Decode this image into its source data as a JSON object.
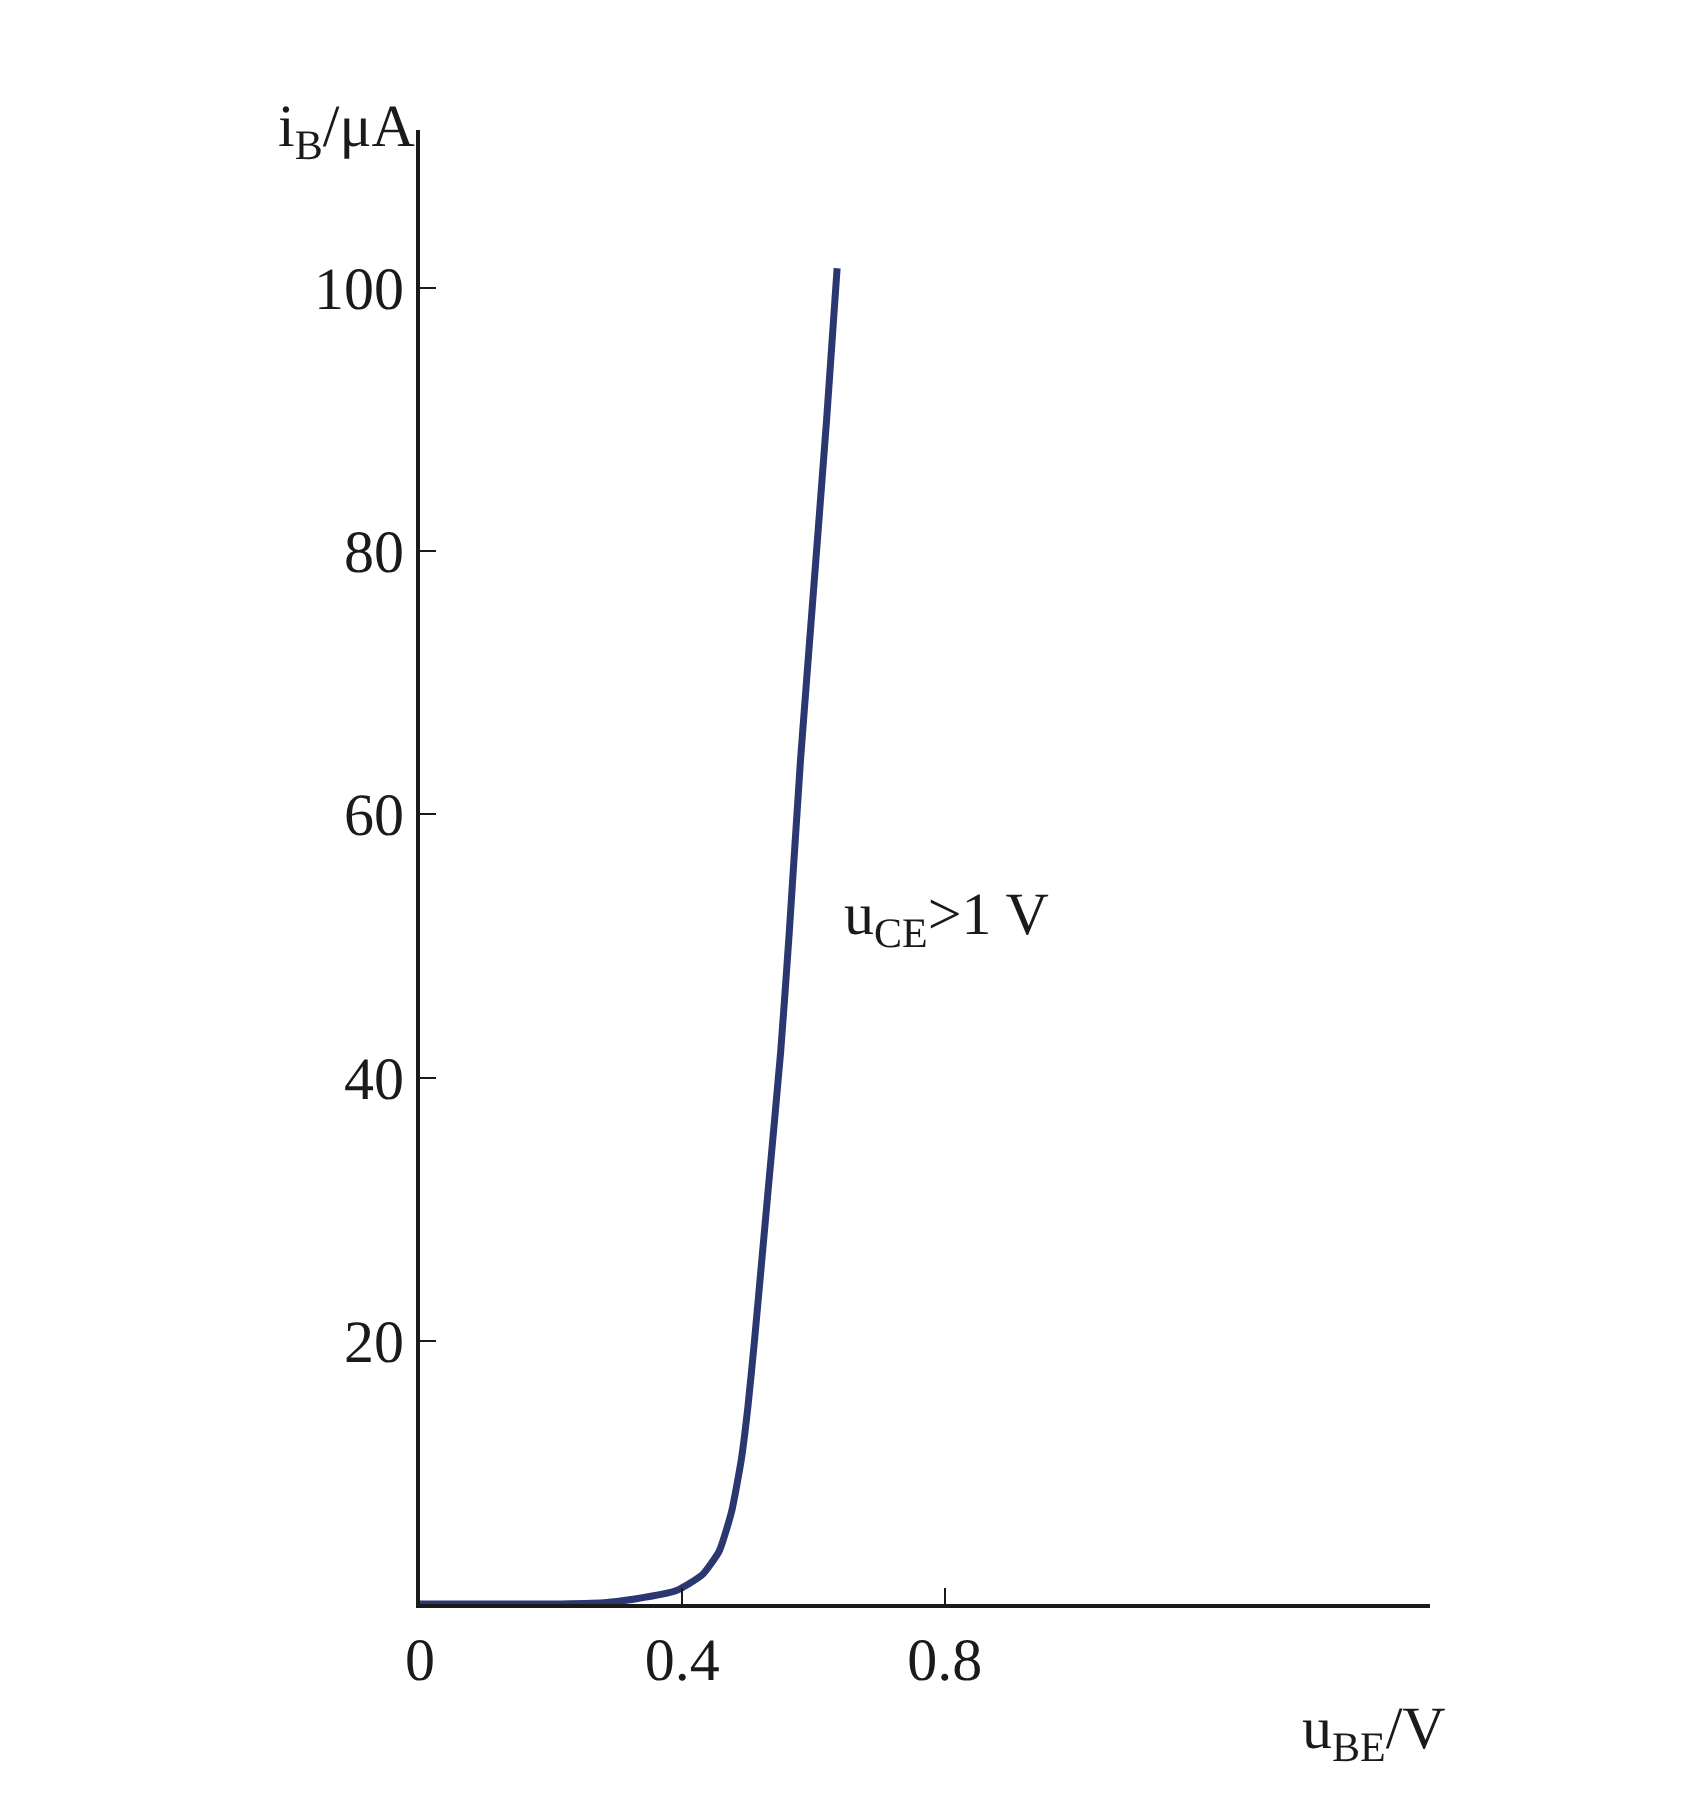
{
  "chart_data": {
    "type": "line",
    "xlabel": "u$_{BE}$/V",
    "ylabel": "i$_{B}$/μA",
    "x": [
      0,
      0.1,
      0.2,
      0.28,
      0.33,
      0.39,
      0.43,
      0.456,
      0.475,
      0.49,
      0.5,
      0.51,
      0.53,
      0.55,
      0.563,
      0.58,
      0.6,
      0.62,
      0.636
    ],
    "series": [
      {
        "color": "#2b3770",
        "values": [
          0,
          0,
          0,
          0.1,
          0.4,
          1,
          2.2,
          4,
          7,
          11,
          15,
          20,
          31,
          42,
          51,
          64,
          77,
          90,
          101.5
        ]
      }
    ],
    "xlim": [
      0,
      1.54
    ],
    "ylim": [
      0,
      112
    ],
    "xticks": [
      0,
      0.4,
      0.8
    ],
    "yticks": [
      20,
      40,
      60,
      80,
      100
    ],
    "annotations": [
      "u$_{CE}$>1 V"
    ],
    "legend": false,
    "marker": "none",
    "line_style": "solid"
  }
}
